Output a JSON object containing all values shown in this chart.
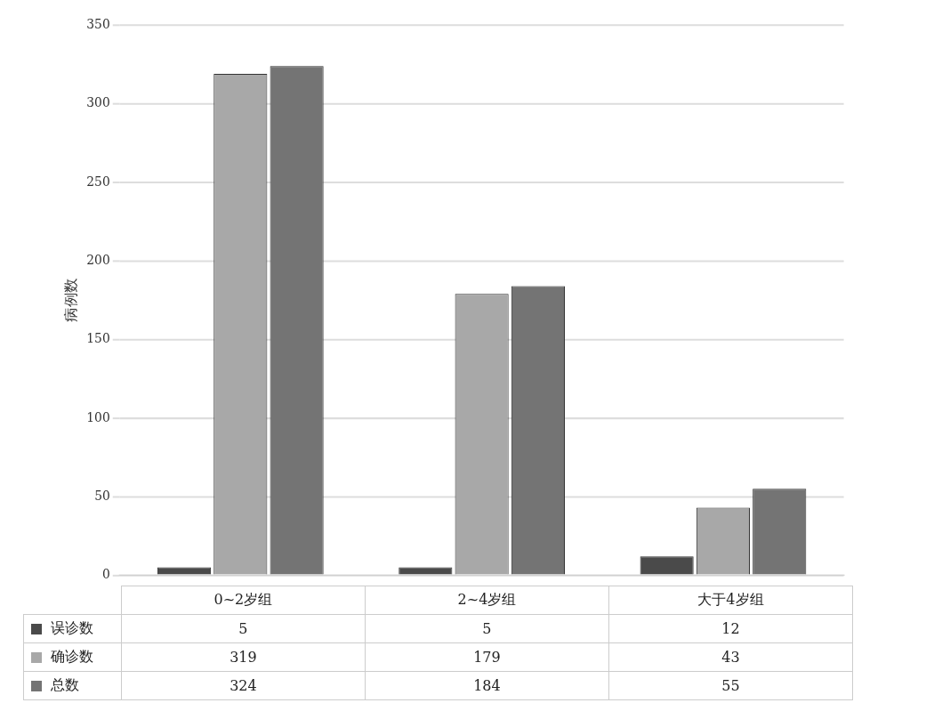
{
  "chart_data": {
    "type": "bar",
    "ylabel": "病例数",
    "categories": [
      "0~2岁组",
      "2~4岁组",
      "大于4岁组"
    ],
    "series": [
      {
        "name": "误诊数",
        "color": "#4a4a4a",
        "values": [
          5,
          5,
          12
        ]
      },
      {
        "name": "确诊数",
        "color": "#a8a8a8",
        "values": [
          319,
          179,
          43
        ]
      },
      {
        "name": "总数",
        "color": "#747474",
        "values": [
          324,
          184,
          55
        ]
      }
    ],
    "ylim": [
      0,
      350
    ],
    "yticks": [
      0,
      50,
      100,
      150,
      200,
      250,
      300,
      350
    ],
    "grid": "y",
    "legend": "bottom",
    "data_labels": true
  }
}
